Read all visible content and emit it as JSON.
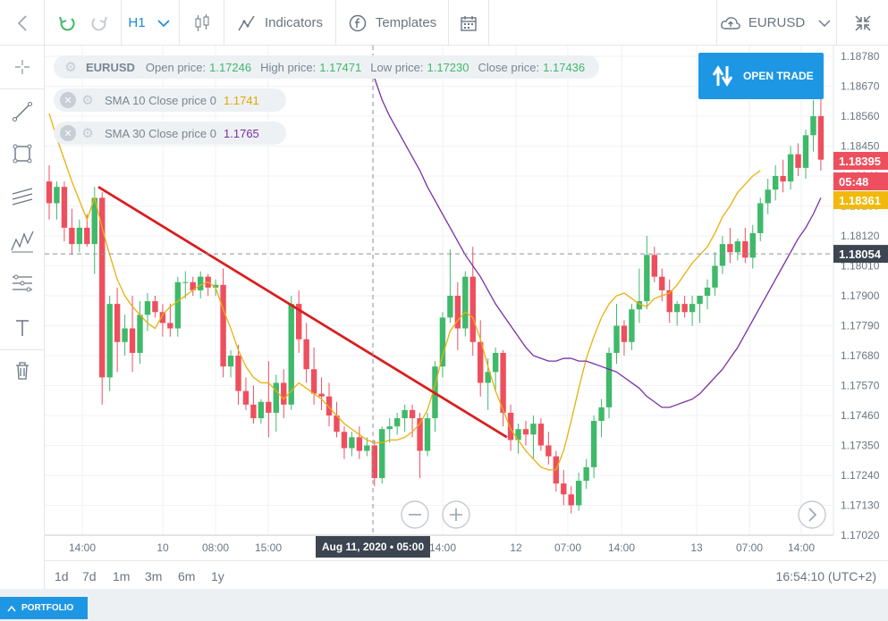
{
  "toolbar": {
    "timeframe": "H1",
    "indicators_label": "Indicators",
    "templates_label": "Templates",
    "symbol": "EURUSD"
  },
  "legend": {
    "symbol": "EURUSD",
    "open_label": "Open price:",
    "open_value": "1.17246",
    "high_label": "High price:",
    "high_value": "1.17471",
    "low_label": "Low price:",
    "low_value": "1.17230",
    "close_label": "Close price:",
    "close_value": "1.17436",
    "sma10_label": "SMA 10 Close price 0",
    "sma10_value": "1.1741",
    "sma30_label": "SMA 30 Close price 0",
    "sma30_value": "1.1765"
  },
  "open_trade_label": "OPEN TRADE",
  "price_axis": {
    "ticks": [
      "1.18780",
      "1.18670",
      "1.18560",
      "1.18450",
      "1.18340",
      "1.18230",
      "1.18120",
      "1.18010",
      "1.17900",
      "1.17790",
      "1.17680",
      "1.17570",
      "1.17460",
      "1.17350",
      "1.17240",
      "1.17130",
      "1.17020"
    ],
    "current_price": "1.18395",
    "countdown": "05:48",
    "sma_price": "1.18361",
    "crosshair_price": "1.18054"
  },
  "time_axis": {
    "labels": [
      "14:00",
      "10",
      "08:00",
      "15:00",
      "14:00",
      "12",
      "07:00",
      "14:00",
      "13",
      "07:00",
      "14:00"
    ],
    "crosshair_time": "Aug 11, 2020 • 05:00"
  },
  "ranges": [
    "1d",
    "7d",
    "1m",
    "3m",
    "6m",
    "1y"
  ],
  "clock": "16:54:10 (UTC+2)",
  "portfolio_label": "PORTFOLIO",
  "colors": {
    "up": "#3fb96a",
    "down": "#ee4f5e",
    "sma10": "#e8b10c",
    "sma30": "#7a2fa3",
    "trendline": "#d91e1e",
    "accent": "#1d97e3"
  },
  "chart_data": {
    "type": "candlestick",
    "symbol": "EURUSD",
    "timeframe": "H1",
    "ylim": [
      1.1702,
      1.1878
    ],
    "candles": [
      {
        "o": 1.1832,
        "h": 1.1838,
        "l": 1.1818,
        "c": 1.1824
      },
      {
        "o": 1.1824,
        "h": 1.1832,
        "l": 1.1818,
        "c": 1.183
      },
      {
        "o": 1.183,
        "h": 1.1832,
        "l": 1.181,
        "c": 1.1815
      },
      {
        "o": 1.1815,
        "h": 1.1822,
        "l": 1.1805,
        "c": 1.1809
      },
      {
        "o": 1.1809,
        "h": 1.1818,
        "l": 1.1806,
        "c": 1.1815
      },
      {
        "o": 1.1815,
        "h": 1.182,
        "l": 1.1808,
        "c": 1.1809
      },
      {
        "o": 1.1809,
        "h": 1.183,
        "l": 1.1798,
        "c": 1.1826
      },
      {
        "o": 1.1826,
        "h": 1.1828,
        "l": 1.175,
        "c": 1.176
      },
      {
        "o": 1.176,
        "h": 1.179,
        "l": 1.1755,
        "c": 1.1787
      },
      {
        "o": 1.1787,
        "h": 1.1793,
        "l": 1.1762,
        "c": 1.1773
      },
      {
        "o": 1.1773,
        "h": 1.1783,
        "l": 1.1768,
        "c": 1.1778
      },
      {
        "o": 1.1778,
        "h": 1.179,
        "l": 1.1762,
        "c": 1.1769
      },
      {
        "o": 1.1769,
        "h": 1.1788,
        "l": 1.1765,
        "c": 1.1783
      },
      {
        "o": 1.1783,
        "h": 1.1791,
        "l": 1.1777,
        "c": 1.1788
      },
      {
        "o": 1.1788,
        "h": 1.179,
        "l": 1.1782,
        "c": 1.1784
      },
      {
        "o": 1.1784,
        "h": 1.1787,
        "l": 1.1775,
        "c": 1.178
      },
      {
        "o": 1.178,
        "h": 1.1787,
        "l": 1.1775,
        "c": 1.1778
      },
      {
        "o": 1.1778,
        "h": 1.1797,
        "l": 1.1775,
        "c": 1.1795
      },
      {
        "o": 1.1795,
        "h": 1.1799,
        "l": 1.1789,
        "c": 1.1795
      },
      {
        "o": 1.1795,
        "h": 1.1797,
        "l": 1.179,
        "c": 1.1792
      },
      {
        "o": 1.1792,
        "h": 1.1799,
        "l": 1.1789,
        "c": 1.1797
      },
      {
        "o": 1.1797,
        "h": 1.1798,
        "l": 1.179,
        "c": 1.1793
      },
      {
        "o": 1.1793,
        "h": 1.1796,
        "l": 1.179,
        "c": 1.1794
      },
      {
        "o": 1.1794,
        "h": 1.18,
        "l": 1.176,
        "c": 1.1764
      },
      {
        "o": 1.1764,
        "h": 1.177,
        "l": 1.176,
        "c": 1.1768
      },
      {
        "o": 1.1768,
        "h": 1.1772,
        "l": 1.175,
        "c": 1.1755
      },
      {
        "o": 1.1755,
        "h": 1.176,
        "l": 1.1748,
        "c": 1.175
      },
      {
        "o": 1.175,
        "h": 1.1757,
        "l": 1.1743,
        "c": 1.1745
      },
      {
        "o": 1.1745,
        "h": 1.1752,
        "l": 1.1743,
        "c": 1.1751
      },
      {
        "o": 1.1751,
        "h": 1.1766,
        "l": 1.1738,
        "c": 1.1747
      },
      {
        "o": 1.1747,
        "h": 1.1761,
        "l": 1.174,
        "c": 1.1758
      },
      {
        "o": 1.1758,
        "h": 1.1763,
        "l": 1.1745,
        "c": 1.175
      },
      {
        "o": 1.175,
        "h": 1.179,
        "l": 1.1748,
        "c": 1.1787
      },
      {
        "o": 1.1787,
        "h": 1.1792,
        "l": 1.1769,
        "c": 1.1774
      },
      {
        "o": 1.1774,
        "h": 1.178,
        "l": 1.1758,
        "c": 1.1763
      },
      {
        "o": 1.1763,
        "h": 1.1771,
        "l": 1.175,
        "c": 1.1754
      },
      {
        "o": 1.1754,
        "h": 1.176,
        "l": 1.1748,
        "c": 1.1753
      },
      {
        "o": 1.1753,
        "h": 1.1758,
        "l": 1.1742,
        "c": 1.1746
      },
      {
        "o": 1.1746,
        "h": 1.1751,
        "l": 1.1738,
        "c": 1.174
      },
      {
        "o": 1.174,
        "h": 1.1742,
        "l": 1.173,
        "c": 1.1734
      },
      {
        "o": 1.1734,
        "h": 1.174,
        "l": 1.1731,
        "c": 1.1738
      },
      {
        "o": 1.1738,
        "h": 1.1742,
        "l": 1.173,
        "c": 1.1733
      },
      {
        "o": 1.1733,
        "h": 1.1738,
        "l": 1.1731,
        "c": 1.1735
      },
      {
        "o": 1.1735,
        "h": 1.1737,
        "l": 1.172,
        "c": 1.1723
      },
      {
        "o": 1.1723,
        "h": 1.1742,
        "l": 1.1721,
        "c": 1.1741
      },
      {
        "o": 1.1741,
        "h": 1.1745,
        "l": 1.1736,
        "c": 1.1742
      },
      {
        "o": 1.1742,
        "h": 1.1747,
        "l": 1.1739,
        "c": 1.1745
      },
      {
        "o": 1.1745,
        "h": 1.175,
        "l": 1.174,
        "c": 1.1748
      },
      {
        "o": 1.1748,
        "h": 1.175,
        "l": 1.1738,
        "c": 1.1745
      },
      {
        "o": 1.1745,
        "h": 1.1747,
        "l": 1.1723,
        "c": 1.1733
      },
      {
        "o": 1.1733,
        "h": 1.1747,
        "l": 1.1731,
        "c": 1.1745
      },
      {
        "o": 1.1745,
        "h": 1.1766,
        "l": 1.174,
        "c": 1.1764
      },
      {
        "o": 1.1764,
        "h": 1.1784,
        "l": 1.176,
        "c": 1.1782
      },
      {
        "o": 1.1782,
        "h": 1.1807,
        "l": 1.178,
        "c": 1.179
      },
      {
        "o": 1.179,
        "h": 1.1795,
        "l": 1.177,
        "c": 1.1778
      },
      {
        "o": 1.1778,
        "h": 1.1799,
        "l": 1.1775,
        "c": 1.1797
      },
      {
        "o": 1.1797,
        "h": 1.1808,
        "l": 1.1768,
        "c": 1.1773
      },
      {
        "o": 1.1773,
        "h": 1.1781,
        "l": 1.1753,
        "c": 1.1758
      },
      {
        "o": 1.1758,
        "h": 1.1767,
        "l": 1.1748,
        "c": 1.1762
      },
      {
        "o": 1.1762,
        "h": 1.1771,
        "l": 1.1755,
        "c": 1.1769
      },
      {
        "o": 1.1769,
        "h": 1.177,
        "l": 1.1742,
        "c": 1.1747
      },
      {
        "o": 1.1747,
        "h": 1.175,
        "l": 1.1733,
        "c": 1.1737
      },
      {
        "o": 1.1737,
        "h": 1.1743,
        "l": 1.1732,
        "c": 1.1741
      },
      {
        "o": 1.1741,
        "h": 1.1744,
        "l": 1.1735,
        "c": 1.1739
      },
      {
        "o": 1.1739,
        "h": 1.1746,
        "l": 1.173,
        "c": 1.1743
      },
      {
        "o": 1.1743,
        "h": 1.1745,
        "l": 1.1733,
        "c": 1.1735
      },
      {
        "o": 1.1735,
        "h": 1.174,
        "l": 1.1728,
        "c": 1.1731
      },
      {
        "o": 1.1731,
        "h": 1.1733,
        "l": 1.1718,
        "c": 1.1721
      },
      {
        "o": 1.1721,
        "h": 1.1726,
        "l": 1.1713,
        "c": 1.1717
      },
      {
        "o": 1.1717,
        "h": 1.172,
        "l": 1.171,
        "c": 1.1713
      },
      {
        "o": 1.1713,
        "h": 1.1725,
        "l": 1.1711,
        "c": 1.1722
      },
      {
        "o": 1.1722,
        "h": 1.173,
        "l": 1.1719,
        "c": 1.1727
      },
      {
        "o": 1.1727,
        "h": 1.1746,
        "l": 1.1723,
        "c": 1.1744
      },
      {
        "o": 1.1744,
        "h": 1.1752,
        "l": 1.1738,
        "c": 1.1749
      },
      {
        "o": 1.1749,
        "h": 1.1771,
        "l": 1.1745,
        "c": 1.1769
      },
      {
        "o": 1.1769,
        "h": 1.1787,
        "l": 1.1765,
        "c": 1.1779
      },
      {
        "o": 1.1779,
        "h": 1.1781,
        "l": 1.1768,
        "c": 1.1773
      },
      {
        "o": 1.1773,
        "h": 1.1787,
        "l": 1.177,
        "c": 1.1785
      },
      {
        "o": 1.1785,
        "h": 1.18,
        "l": 1.178,
        "c": 1.1788
      },
      {
        "o": 1.1788,
        "h": 1.1812,
        "l": 1.1785,
        "c": 1.1805
      },
      {
        "o": 1.1805,
        "h": 1.1808,
        "l": 1.1795,
        "c": 1.1797
      },
      {
        "o": 1.1797,
        "h": 1.18,
        "l": 1.1788,
        "c": 1.1792
      },
      {
        "o": 1.1792,
        "h": 1.1796,
        "l": 1.178,
        "c": 1.1784
      },
      {
        "o": 1.1784,
        "h": 1.1788,
        "l": 1.1779,
        "c": 1.1787
      },
      {
        "o": 1.1787,
        "h": 1.179,
        "l": 1.1782,
        "c": 1.1784
      },
      {
        "o": 1.1784,
        "h": 1.179,
        "l": 1.1779,
        "c": 1.1787
      },
      {
        "o": 1.1787,
        "h": 1.179,
        "l": 1.178,
        "c": 1.179
      },
      {
        "o": 1.179,
        "h": 1.1796,
        "l": 1.1785,
        "c": 1.1793
      },
      {
        "o": 1.1793,
        "h": 1.1806,
        "l": 1.179,
        "c": 1.1801
      },
      {
        "o": 1.1801,
        "h": 1.1812,
        "l": 1.1798,
        "c": 1.1809
      },
      {
        "o": 1.1809,
        "h": 1.1815,
        "l": 1.1802,
        "c": 1.1806
      },
      {
        "o": 1.1806,
        "h": 1.1811,
        "l": 1.1803,
        "c": 1.181
      },
      {
        "o": 1.181,
        "h": 1.1815,
        "l": 1.1802,
        "c": 1.1804
      },
      {
        "o": 1.1804,
        "h": 1.1816,
        "l": 1.18,
        "c": 1.1813
      },
      {
        "o": 1.1813,
        "h": 1.1826,
        "l": 1.181,
        "c": 1.1824
      },
      {
        "o": 1.1824,
        "h": 1.1833,
        "l": 1.182,
        "c": 1.1829
      },
      {
        "o": 1.1829,
        "h": 1.1838,
        "l": 1.1825,
        "c": 1.1834
      },
      {
        "o": 1.1834,
        "h": 1.184,
        "l": 1.1828,
        "c": 1.1832
      },
      {
        "o": 1.1832,
        "h": 1.1845,
        "l": 1.1829,
        "c": 1.1842
      },
      {
        "o": 1.1842,
        "h": 1.1846,
        "l": 1.1834,
        "c": 1.1837
      },
      {
        "o": 1.1837,
        "h": 1.1851,
        "l": 1.1833,
        "c": 1.1849
      },
      {
        "o": 1.1849,
        "h": 1.1862,
        "l": 1.1843,
        "c": 1.1856
      },
      {
        "o": 1.1856,
        "h": 1.1868,
        "l": 1.1836,
        "c": 1.184
      }
    ],
    "sma10": [
      1.1857,
      1.1848,
      1.184,
      1.1832,
      1.1825,
      1.1818,
      1.1826,
      1.1815,
      1.1805,
      1.1796,
      1.179,
      1.1786,
      1.1783,
      1.178,
      1.1778,
      1.1783,
      1.1786,
      1.1788,
      1.179,
      1.1792,
      1.1794,
      1.1795,
      1.1793,
      1.1785,
      1.1778,
      1.177,
      1.1764,
      1.176,
      1.1758,
      1.1758,
      1.1755,
      1.1752,
      1.1755,
      1.1758,
      1.1756,
      1.1754,
      1.1752,
      1.1749,
      1.1746,
      1.1743,
      1.1741,
      1.1739,
      1.1737,
      1.1736,
      1.1736,
      1.1737,
      1.1737,
      1.1738,
      1.174,
      1.1743,
      1.1748,
      1.1757,
      1.1768,
      1.1777,
      1.1781,
      1.1784,
      1.1782,
      1.1774,
      1.1764,
      1.1755,
      1.1748,
      1.1741,
      1.1737,
      1.1733,
      1.173,
      1.1727,
      1.1726,
      1.1726,
      1.1733,
      1.1744,
      1.1756,
      1.1767,
      1.1775,
      1.1782,
      1.1787,
      1.179,
      1.1791,
      1.1789,
      1.1787,
      1.1786,
      1.1789,
      1.179,
      1.1791,
      1.1794,
      1.1798,
      1.1802,
      1.1805,
      1.1808,
      1.1813,
      1.1819,
      1.1823,
      1.1828,
      1.1831,
      1.1834,
      1.1836
    ],
    "sma30": [
      1.187,
      1.1862,
      1.1856,
      1.1851,
      1.1846,
      1.1841,
      1.1836,
      1.183,
      1.1825,
      1.182,
      1.1815,
      1.181,
      1.1805,
      1.1801,
      1.1797,
      1.1792,
      1.1787,
      1.1783,
      1.1779,
      1.1775,
      1.1771,
      1.1768,
      1.1767,
      1.1766,
      1.1766,
      1.1767,
      1.1767,
      1.1766,
      1.1766,
      1.1765,
      1.1764,
      1.1763,
      1.1762,
      1.176,
      1.1758,
      1.1756,
      1.1753,
      1.1751,
      1.1749,
      1.1749,
      1.175,
      1.1751,
      1.1752,
      1.1754,
      1.1757,
      1.176,
      1.1763,
      1.1767,
      1.1771,
      1.1776,
      1.1781,
      1.1786,
      1.1791,
      1.1796,
      1.1801,
      1.1806,
      1.1811,
      1.1815,
      1.182,
      1.1826
    ],
    "trendline": [
      {
        "i": 6.5,
        "p": 1.183
      },
      {
        "i": 60.5,
        "p": 1.1738
      }
    ]
  }
}
